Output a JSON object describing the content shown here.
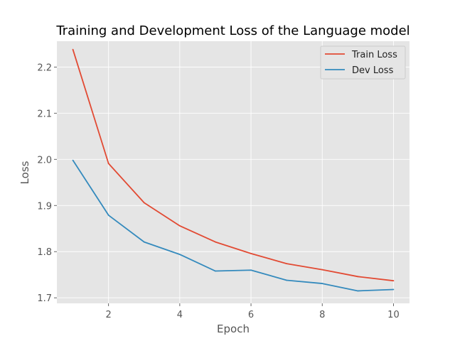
{
  "chart_data": {
    "type": "line",
    "title": "Training and Development Loss of the Language model",
    "xlabel": "Epoch",
    "ylabel": "Loss",
    "x": [
      1,
      2,
      3,
      4,
      5,
      6,
      7,
      8,
      9,
      10
    ],
    "xlim": [
      0.55,
      10.45
    ],
    "ylim": [
      1.688,
      2.256
    ],
    "xticks": [
      2,
      4,
      6,
      8,
      10
    ],
    "yticks": [
      1.7,
      1.8,
      1.9,
      2.0,
      2.1,
      2.2
    ],
    "xtick_labels": [
      "2",
      "4",
      "6",
      "8",
      "10"
    ],
    "ytick_labels": [
      "1.7",
      "1.8",
      "1.9",
      "2.0",
      "2.1",
      "2.2"
    ],
    "grid": true,
    "legend_position": "top-right",
    "series": [
      {
        "name": "Train Loss",
        "color": "#E24A33",
        "values": [
          2.238,
          1.991,
          1.906,
          1.856,
          1.821,
          1.796,
          1.774,
          1.761,
          1.746,
          1.737
        ]
      },
      {
        "name": "Dev Loss",
        "color": "#348ABD",
        "values": [
          1.998,
          1.879,
          1.821,
          1.794,
          1.758,
          1.76,
          1.738,
          1.731,
          1.715,
          1.718
        ]
      }
    ]
  }
}
